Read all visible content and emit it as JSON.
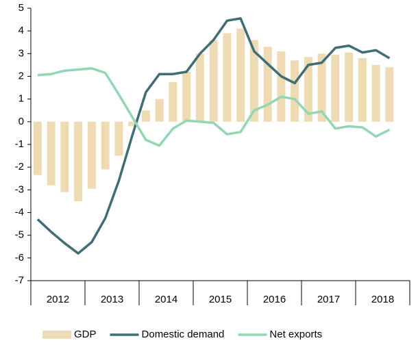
{
  "chart_data": {
    "type": "bar",
    "categories": [
      null,
      null,
      null,
      null,
      null,
      null,
      null,
      null,
      null,
      null,
      null,
      null,
      null,
      null,
      null,
      null,
      null,
      null,
      null,
      null,
      null,
      null,
      null,
      null,
      null,
      null,
      null,
      null
    ],
    "year_groups": [
      {
        "label": "2012",
        "quarters": 4
      },
      {
        "label": "2013",
        "quarters": 4
      },
      {
        "label": "2014",
        "quarters": 4
      },
      {
        "label": "2015",
        "quarters": 4
      },
      {
        "label": "2016",
        "quarters": 4
      },
      {
        "label": "2017",
        "quarters": 4
      },
      {
        "label": "2018",
        "quarters": 4
      }
    ],
    "series": [
      {
        "name": "GDP",
        "type": "bar",
        "color": "#efdbb3",
        "values": [
          -2.35,
          -2.8,
          -3.1,
          -3.5,
          -2.95,
          -2.1,
          -1.5,
          -0.2,
          0.5,
          1.0,
          1.75,
          2.2,
          3.0,
          3.6,
          3.9,
          4.1,
          3.6,
          3.3,
          3.1,
          2.7,
          2.85,
          3.0,
          2.95,
          3.05,
          2.8,
          2.5,
          2.4,
          null
        ]
      },
      {
        "name": "Domestic demand",
        "type": "line",
        "color": "#3e6d74",
        "values": [
          -4.3,
          -4.85,
          -5.35,
          -5.8,
          -5.3,
          -4.25,
          -2.6,
          -0.6,
          1.3,
          2.1,
          2.1,
          2.2,
          3.0,
          3.6,
          4.45,
          4.55,
          3.1,
          2.55,
          2.0,
          1.7,
          2.5,
          2.6,
          3.25,
          3.35,
          3.05,
          3.15,
          2.8,
          null
        ]
      },
      {
        "name": "Net exports",
        "type": "line",
        "color": "#93d6b4",
        "values": [
          2.05,
          2.1,
          2.25,
          2.3,
          2.35,
          2.15,
          1.2,
          0.2,
          -0.8,
          -1.05,
          -0.3,
          0.05,
          0.0,
          -0.05,
          -0.55,
          -0.45,
          0.5,
          0.75,
          1.1,
          1.0,
          0.35,
          0.45,
          -0.3,
          -0.2,
          -0.25,
          -0.65,
          -0.35,
          null
        ]
      }
    ],
    "ylim": [
      -7,
      5
    ],
    "yticks": [
      -7,
      -6,
      -5,
      -4,
      -3,
      -2,
      -1,
      0,
      1,
      2,
      3,
      4,
      5
    ]
  }
}
